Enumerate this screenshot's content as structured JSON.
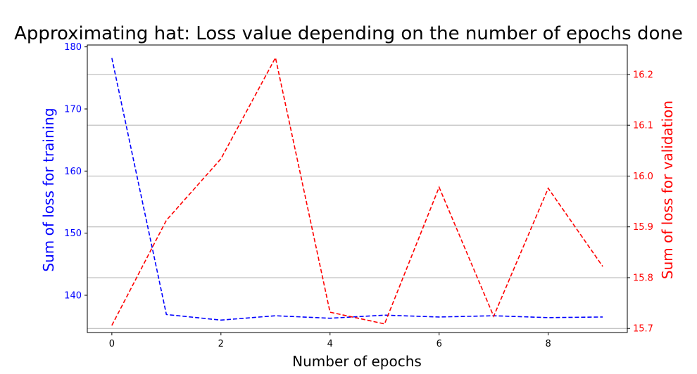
{
  "chart_data": {
    "type": "line",
    "title": "Approximating hat: Loss value depending on the number of epochs done",
    "xlabel": "Number of epochs",
    "ylabel_left": "Sum of loss for training",
    "ylabel_right": "Sum of loss for validation",
    "x": [
      0,
      1,
      2,
      3,
      4,
      5,
      6,
      7,
      8,
      9
    ],
    "xlim": [
      -0.45,
      9.45
    ],
    "x_ticks": [
      0,
      2,
      4,
      6,
      8
    ],
    "grid": "horizontal lines at right-axis ticks",
    "series": [
      {
        "axis": "left",
        "color": "#0000ff",
        "style": "dashed",
        "values": [
          178.2,
          136.9,
          136.0,
          136.7,
          136.3,
          136.8,
          136.5,
          136.7,
          136.4,
          136.5
        ]
      },
      {
        "axis": "right",
        "color": "#ff0000",
        "style": "dashed",
        "values": [
          15.706,
          15.913,
          16.034,
          16.233,
          15.732,
          15.709,
          15.978,
          15.724,
          15.976,
          15.822
        ]
      }
    ],
    "ylim_left": [
      134.0,
      180.3
    ],
    "yticks_left": [
      140,
      150,
      160,
      170,
      180
    ],
    "ylim_right": [
      15.692,
      16.258
    ],
    "yticks_right": [
      15.7,
      15.8,
      15.9,
      16.0,
      16.1,
      16.2
    ],
    "colors": {
      "left_axis": "#0000ff",
      "right_axis": "#ff0000",
      "grid": "#b0b0b0"
    }
  }
}
